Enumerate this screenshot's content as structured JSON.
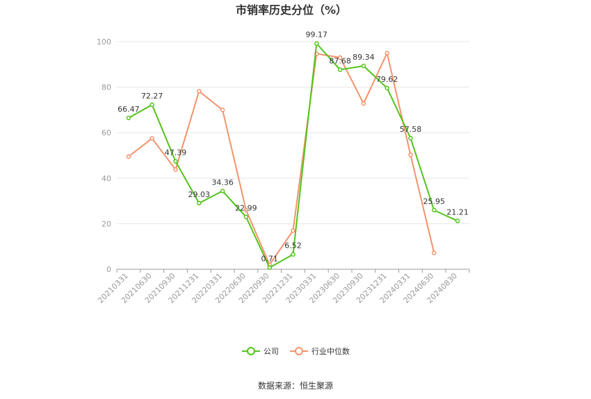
{
  "chart_data": {
    "type": "line",
    "title": "市销率历史分位（%）",
    "categories": [
      "20210331",
      "20210630",
      "20210930",
      "20211231",
      "20220331",
      "20220630",
      "20220930",
      "20221231",
      "20230331",
      "20230630",
      "20230930",
      "20231231",
      "20240331",
      "20240630",
      "20240830"
    ],
    "ylim": [
      0,
      100
    ],
    "yticks": [
      0,
      20,
      40,
      60,
      80,
      100
    ],
    "grid": true,
    "legend_position": "bottom",
    "series": [
      {
        "name": "公司",
        "color": "#52c41a",
        "values": [
          66.47,
          72.27,
          47.39,
          29.03,
          34.36,
          22.99,
          0.71,
          6.52,
          99.17,
          87.68,
          89.34,
          79.62,
          57.58,
          25.95,
          21.21
        ],
        "labels": [
          "66.47",
          "72.27",
          "47.39",
          "29.03",
          "34.36",
          "22.99",
          "0.71",
          "6.52",
          "99.17",
          "87.68",
          "89.34",
          "79.62",
          "57.58",
          "25.95",
          "21.21"
        ]
      },
      {
        "name": "行业中位数",
        "color": "#f4926b",
        "values": [
          49.5,
          57.5,
          43.8,
          78.2,
          70,
          26,
          2,
          17,
          94.7,
          93,
          72.8,
          95,
          50.2,
          7.2,
          null
        ]
      }
    ]
  },
  "source": "数据来源：恒生聚源"
}
